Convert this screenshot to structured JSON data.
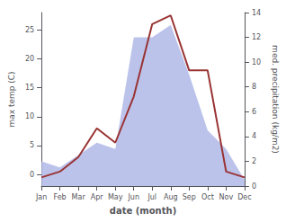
{
  "chart_data": {
    "type": "line",
    "categories": [
      "Jan",
      "Feb",
      "Mar",
      "Apr",
      "May",
      "Jun",
      "Jul",
      "Aug",
      "Sep",
      "Oct",
      "Nov",
      "Dec"
    ],
    "xlabel": "date (month)",
    "ylabel": "max temp (C)",
    "y2label": "med. precipitation (kg/m2)",
    "series": [
      {
        "type": "area",
        "axis": "y2",
        "color": "#b0b8e8",
        "values": [
          2.0,
          1.5,
          2.5,
          3.5,
          3.0,
          12.0,
          12.0,
          13.0,
          9.0,
          4.5,
          3.0,
          0.5
        ]
      },
      {
        "type": "line",
        "color": "#993333",
        "values": [
          -0.5,
          0.5,
          3.0,
          8.0,
          5.5,
          13.5,
          26.0,
          27.5,
          18.0,
          18.0,
          0.5,
          -0.5
        ]
      }
    ],
    "ylim": [
      -2,
      28
    ],
    "yticks": [
      0,
      5,
      10,
      15,
      20,
      25
    ],
    "y2lim": [
      0,
      14
    ],
    "y2ticks": [
      0,
      2,
      4,
      6,
      8,
      10,
      12,
      14
    ],
    "grid": false
  }
}
